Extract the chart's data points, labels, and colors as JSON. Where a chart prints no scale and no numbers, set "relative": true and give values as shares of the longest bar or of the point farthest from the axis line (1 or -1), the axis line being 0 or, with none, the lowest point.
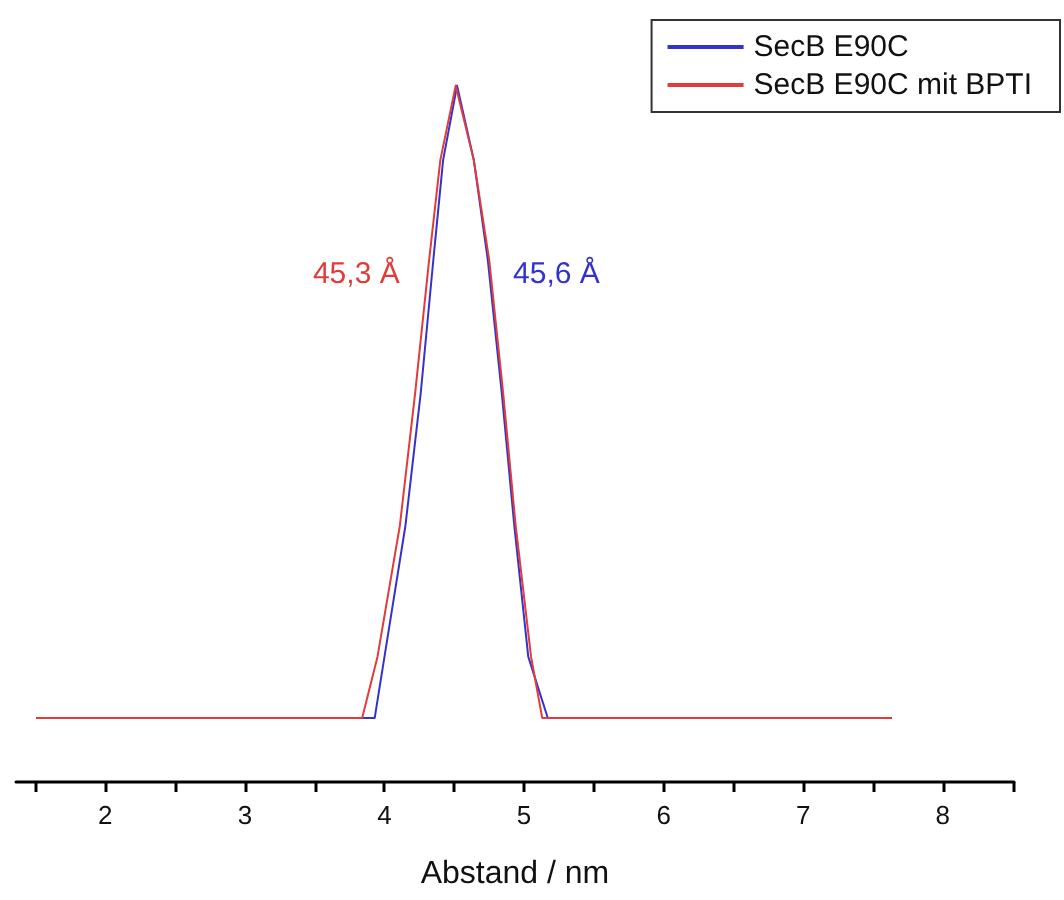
{
  "chart_data": {
    "type": "line",
    "relative": true,
    "xlabel": "Abstand / nm",
    "legend": "top right",
    "marker": "none",
    "line_style": "solid",
    "grid": false,
    "xlim": [
      1.36,
      8.51
    ],
    "xticks": [
      {
        "value": 1.5,
        "label": null
      },
      2,
      {
        "value": 2.5,
        "label": null
      },
      3,
      {
        "value": 3.5,
        "label": null
      },
      4,
      {
        "value": 4.5,
        "label": null
      },
      5,
      {
        "value": 5.5,
        "label": null
      },
      6,
      {
        "value": 6.5,
        "label": null
      },
      7,
      {
        "value": 7.5,
        "label": null
      },
      8,
      {
        "value": 8.5,
        "label": null
      }
    ],
    "series": [
      {
        "name": "SecB E90C",
        "color": "#3333cc",
        "x": [
          1.51,
          3.93,
          4.0,
          4.15,
          4.26,
          4.35,
          4.42,
          4.52,
          4.64,
          4.74,
          4.84,
          4.93,
          5.03,
          5.17,
          7.63
        ],
        "values": [
          0.092,
          0.092,
          0.18,
          0.368,
          0.559,
          0.75,
          0.893,
          1.0,
          0.893,
          0.75,
          0.559,
          0.368,
          0.18,
          0.092,
          0.092
        ]
      },
      {
        "name": "SecB E90C mit BPTI",
        "color": "#e03c3c",
        "x": [
          1.51,
          3.84,
          3.95,
          4.11,
          4.22,
          4.32,
          4.4,
          4.51,
          4.64,
          4.75,
          4.85,
          4.94,
          5.05,
          5.13,
          7.63
        ],
        "values": [
          0.092,
          0.092,
          0.18,
          0.368,
          0.559,
          0.75,
          0.893,
          1.0,
          0.893,
          0.75,
          0.559,
          0.368,
          0.18,
          0.092,
          0.092
        ]
      }
    ],
    "annotations": [
      "45,6 Å",
      "45,3 Å"
    ]
  }
}
